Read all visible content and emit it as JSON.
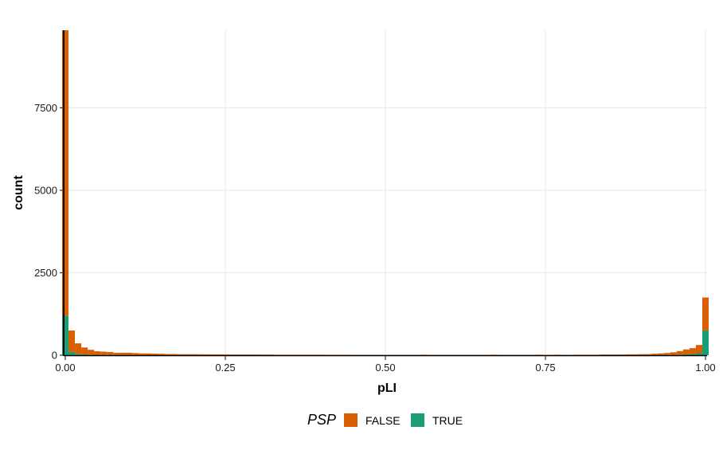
{
  "chart_data": {
    "type": "bar",
    "subtype": "stacked-histogram",
    "title": "",
    "xlabel": "pLI",
    "ylabel": "count",
    "xlim": [
      0,
      1
    ],
    "ylim": [
      0,
      9850
    ],
    "x_ticks": [
      "0.00",
      "0.25",
      "0.50",
      "0.75",
      "1.00"
    ],
    "y_ticks": [
      "0",
      "2500",
      "5000",
      "7500"
    ],
    "grid": true,
    "legend": {
      "title": "PSP",
      "position": "bottom"
    },
    "bin_width": 0.01,
    "stack_order": [
      "TRUE",
      "FALSE"
    ],
    "bins_x": [
      0.0,
      0.01,
      0.02,
      0.03,
      0.04,
      0.05,
      0.06,
      0.07,
      0.08,
      0.09,
      0.1,
      0.11,
      0.12,
      0.13,
      0.14,
      0.15,
      0.16,
      0.17,
      0.18,
      0.19,
      0.2,
      0.21,
      0.22,
      0.23,
      0.24,
      0.25,
      0.26,
      0.27,
      0.28,
      0.29,
      0.3,
      0.31,
      0.32,
      0.33,
      0.34,
      0.35,
      0.36,
      0.37,
      0.38,
      0.39,
      0.4,
      0.41,
      0.42,
      0.43,
      0.44,
      0.45,
      0.46,
      0.47,
      0.48,
      0.49,
      0.5,
      0.51,
      0.52,
      0.53,
      0.54,
      0.55,
      0.56,
      0.57,
      0.58,
      0.59,
      0.6,
      0.61,
      0.62,
      0.63,
      0.64,
      0.65,
      0.66,
      0.67,
      0.68,
      0.69,
      0.7,
      0.71,
      0.72,
      0.73,
      0.74,
      0.75,
      0.76,
      0.77,
      0.78,
      0.79,
      0.8,
      0.81,
      0.82,
      0.83,
      0.84,
      0.85,
      0.86,
      0.87,
      0.88,
      0.89,
      0.9,
      0.91,
      0.92,
      0.93,
      0.94,
      0.95,
      0.96,
      0.97,
      0.98,
      0.99,
      1.0
    ],
    "series": [
      {
        "name": "FALSE",
        "color": "#D95F02",
        "values": [
          8650,
          650,
          320,
          210,
          150,
          110,
          100,
          90,
          70,
          70,
          70,
          60,
          50,
          50,
          45,
          40,
          35,
          35,
          30,
          30,
          30,
          28,
          26,
          25,
          25,
          22,
          20,
          20,
          20,
          20,
          20,
          18,
          18,
          15,
          15,
          15,
          15,
          15,
          15,
          15,
          15,
          12,
          12,
          12,
          12,
          10,
          10,
          10,
          10,
          10,
          10,
          10,
          10,
          10,
          10,
          10,
          15,
          10,
          10,
          10,
          10,
          10,
          10,
          10,
          10,
          10,
          10,
          15,
          10,
          10,
          10,
          10,
          10,
          10,
          15,
          10,
          10,
          15,
          10,
          10,
          15,
          15,
          15,
          15,
          20,
          20,
          20,
          20,
          25,
          25,
          30,
          30,
          40,
          50,
          60,
          80,
          110,
          150,
          180,
          250,
          1000
        ]
      },
      {
        "name": "TRUE",
        "color": "#1B9E77",
        "values": [
          1200,
          100,
          40,
          25,
          15,
          10,
          8,
          6,
          5,
          5,
          5,
          4,
          4,
          3,
          3,
          3,
          2,
          2,
          2,
          2,
          2,
          2,
          2,
          2,
          2,
          2,
          1,
          1,
          1,
          1,
          1,
          1,
          1,
          1,
          1,
          1,
          1,
          1,
          1,
          1,
          1,
          1,
          1,
          1,
          1,
          1,
          1,
          1,
          1,
          1,
          1,
          1,
          1,
          1,
          1,
          1,
          1,
          1,
          1,
          1,
          1,
          1,
          1,
          1,
          1,
          1,
          1,
          1,
          1,
          1,
          1,
          1,
          1,
          1,
          1,
          1,
          1,
          1,
          1,
          1,
          1,
          1,
          1,
          1,
          2,
          2,
          2,
          2,
          2,
          3,
          3,
          4,
          5,
          6,
          8,
          10,
          15,
          25,
          35,
          60,
          750
        ]
      }
    ]
  }
}
